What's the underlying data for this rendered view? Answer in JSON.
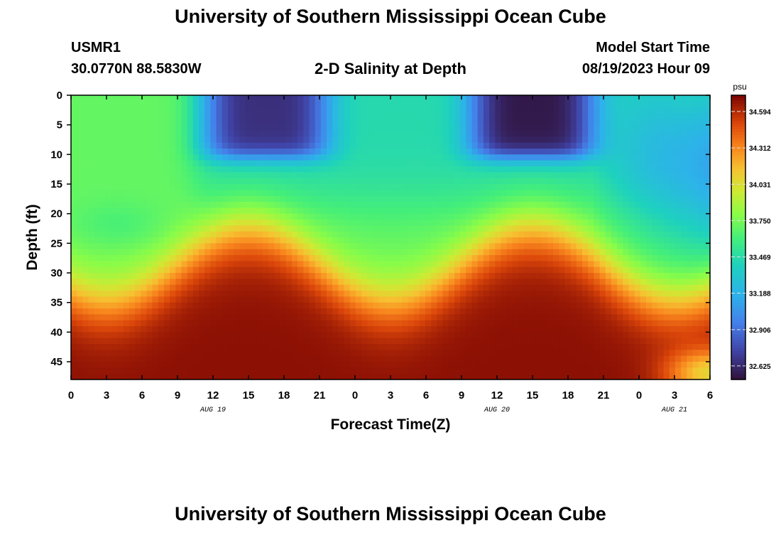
{
  "header": {
    "title": "University of Southern Mississippi Ocean Cube",
    "station_id": "USMR1",
    "station_coords": "30.0770N  88.5830W",
    "plot_title": "2-D Salinity at Depth",
    "model_start_label": "Model Start Time",
    "model_start_value": "08/19/2023 Hour 09"
  },
  "footer": {
    "title": "University of Southern Mississippi Ocean Cube"
  },
  "chart_data": {
    "type": "heatmap",
    "title": "2-D Salinity at Depth",
    "xlabel": "Forecast Time(Z)",
    "ylabel": "Depth (ft)",
    "x_tick_labels": [
      "0",
      "3",
      "6",
      "9",
      "12",
      "15",
      "18",
      "21",
      "0",
      "3",
      "6",
      "9",
      "12",
      "15",
      "18",
      "21",
      "0",
      "3",
      "6"
    ],
    "date_labels": [
      {
        "label": "AUG 19",
        "at_tick": 4
      },
      {
        "label": "AUG 20",
        "at_tick": 12
      },
      {
        "label": "AUG 21",
        "at_tick": 17
      }
    ],
    "y_tick_labels": [
      "0",
      "5",
      "10",
      "15",
      "20",
      "25",
      "30",
      "35",
      "40",
      "45"
    ],
    "xlim_hours": [
      0,
      54
    ],
    "ylim_ft": [
      0,
      48
    ],
    "colorbar": {
      "unit": "psu",
      "range": [
        32.52,
        34.72
      ],
      "ticks": [
        "34.594",
        "34.312",
        "34.031",
        "33.750",
        "33.469",
        "33.188",
        "32.906",
        "32.625"
      ]
    },
    "field_description_points": [
      {
        "hour": 0,
        "depth": 0,
        "psu": 33.8
      },
      {
        "hour": 15,
        "depth": 3,
        "psu": 32.75
      },
      {
        "hour": 39,
        "depth": 2,
        "psu": 32.55
      },
      {
        "hour": 27,
        "depth": 15,
        "psu": 33.45
      },
      {
        "hour": 15,
        "depth": 47,
        "psu": 34.68
      },
      {
        "hour": 39,
        "depth": 47,
        "psu": 34.68
      },
      {
        "hour": 54,
        "depth": 10,
        "psu": 33.2
      }
    ]
  }
}
